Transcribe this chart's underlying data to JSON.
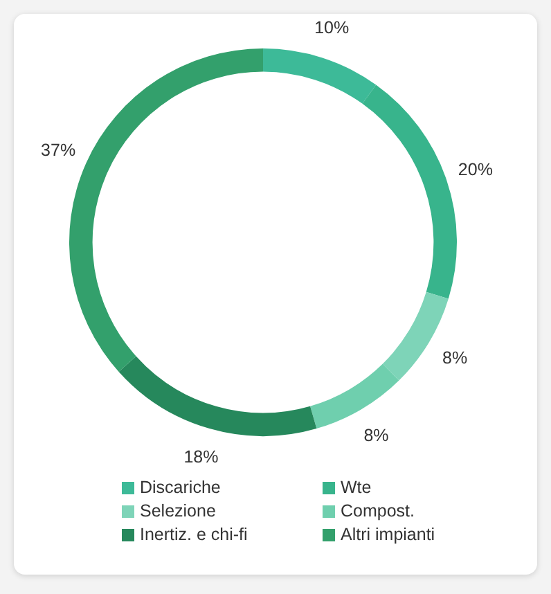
{
  "chart_data": {
    "type": "donut",
    "categories": [
      "Discariche",
      "Wte",
      "Selezione",
      "Compost.",
      "Inertiz. e chi-fi",
      "Altri impianti"
    ],
    "values": [
      10,
      20,
      8,
      8,
      18,
      37
    ],
    "colors": [
      "#3dba98",
      "#38b48c",
      "#7ed4b8",
      "#6fcfae",
      "#26885c",
      "#33a06c"
    ],
    "value_labels": [
      "10%",
      "20%",
      "8%",
      "8%",
      "18%",
      "37%"
    ],
    "legend": "bottom"
  }
}
